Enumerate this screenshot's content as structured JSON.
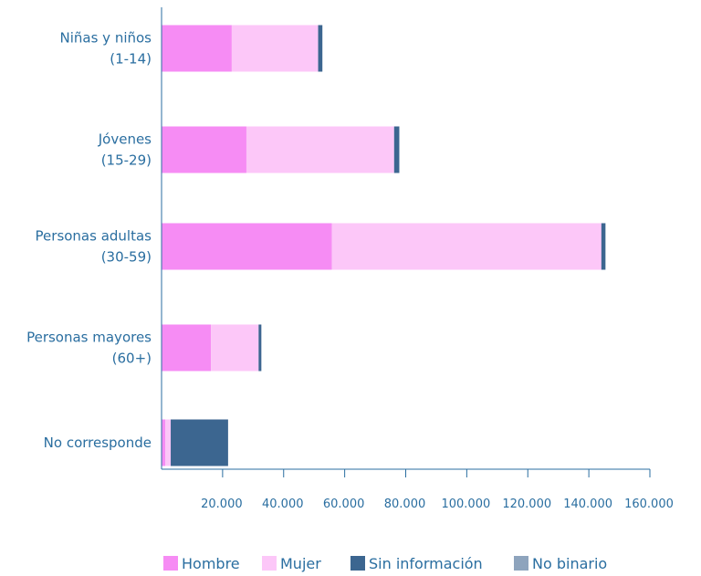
{
  "chart_data": {
    "type": "bar",
    "orientation": "horizontal",
    "stacked": true,
    "categories": [
      [
        "Niñas y niños",
        "(1-14)"
      ],
      [
        "Jóvenes",
        "(15-29)"
      ],
      [
        "Personas adultas",
        "(30-59)"
      ],
      [
        "Personas mayores",
        "(60+)"
      ],
      [
        "No corresponde"
      ]
    ],
    "series": [
      {
        "name": "Hombre",
        "color": "#f68cf4",
        "values": [
          23000,
          27800,
          55800,
          16200,
          1200
        ]
      },
      {
        "name": "Mujer",
        "color": "#fcc7f8",
        "values": [
          28300,
          48400,
          88300,
          15600,
          1800
        ]
      },
      {
        "name": "Sin información",
        "color": "#3c6690",
        "values": [
          1400,
          1700,
          1300,
          900,
          18800
        ]
      },
      {
        "name": "No binario",
        "color": "#8ea4bd",
        "values": [
          0,
          0,
          100,
          0,
          0
        ]
      }
    ],
    "xticks": [
      20000,
      40000,
      60000,
      80000,
      100000,
      120000,
      140000,
      160000
    ],
    "xtick_labels": [
      "20.000",
      "40.000",
      "60.000",
      "80.000",
      "100.000",
      "120.000",
      "140.000",
      "160.000"
    ],
    "xlim": [
      0,
      160000
    ],
    "grid": false,
    "legend_position": "bottom",
    "title": "",
    "xlabel": "",
    "ylabel": ""
  }
}
